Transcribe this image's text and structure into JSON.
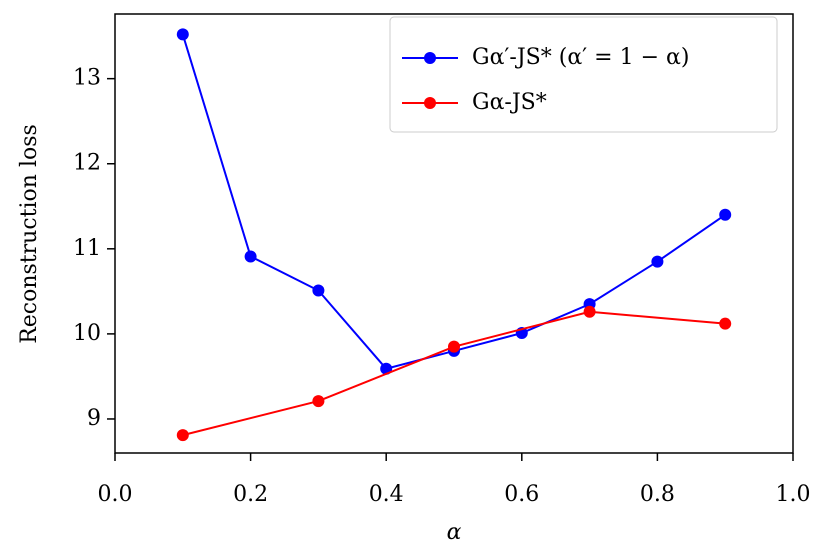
{
  "chart_data": {
    "type": "line",
    "xlabel": "α",
    "ylabel": "Reconstruction loss",
    "xlim": [
      0,
      1
    ],
    "ylim": [
      8.6,
      13.76
    ],
    "xticks": [
      {
        "value": 0,
        "label": "0.0"
      },
      {
        "value": 0.2,
        "label": "0.2"
      },
      {
        "value": 0.4,
        "label": "0.4"
      },
      {
        "value": 0.6,
        "label": "0.6"
      },
      {
        "value": 0.8,
        "label": "0.8"
      },
      {
        "value": 1,
        "label": "1.0"
      }
    ],
    "yticks": [
      9,
      10,
      11,
      12,
      13
    ],
    "legend": "upper right",
    "series": [
      {
        "name": "Gα′-JS* (α′ = 1 − α)",
        "color": "#0000ff",
        "x": [
          0.1,
          0.2,
          0.3,
          0.4,
          0.5,
          0.6,
          0.7,
          0.8,
          0.9
        ],
        "values": [
          13.52,
          10.91,
          10.51,
          9.59,
          9.8,
          10.01,
          10.35,
          10.85,
          11.4
        ]
      },
      {
        "name": "Gα-JS*",
        "color": "#ff0000",
        "x": [
          0.1,
          0.3,
          0.5,
          0.7,
          0.9
        ],
        "values": [
          8.81,
          9.21,
          9.85,
          10.26,
          10.12
        ]
      }
    ]
  }
}
